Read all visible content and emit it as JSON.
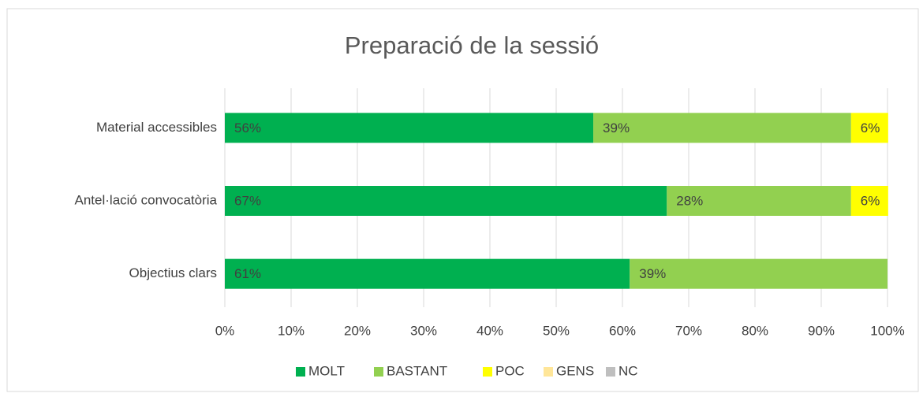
{
  "chart_data": {
    "type": "stacked_barh",
    "title": "Preparació de la sessió",
    "categories": [
      "Material accessibles",
      "Antel·lació convocatòria",
      "Objectius clars"
    ],
    "series": [
      {
        "name": "MOLT",
        "color": "#00b050",
        "values": [
          55.6,
          66.7,
          61.1
        ],
        "value_labels": [
          "56%",
          "67%",
          "61%"
        ]
      },
      {
        "name": "BASTANT",
        "color": "#92d050",
        "values": [
          38.9,
          27.8,
          38.9
        ],
        "value_labels": [
          "39%",
          "28%",
          "39%"
        ]
      },
      {
        "name": "POC",
        "color": "#ffff00",
        "values": [
          5.6,
          5.6,
          0
        ],
        "value_labels": [
          "6%",
          "6%",
          null
        ]
      },
      {
        "name": "GENS",
        "color": "#ffe699",
        "values": [
          0,
          0,
          0
        ]
      },
      {
        "name": "NC",
        "color": "#bfbfbf",
        "values": [
          0,
          0,
          0
        ]
      }
    ],
    "xlim": [
      0,
      100
    ],
    "xticks": [
      {
        "value": 0,
        "label": "0%"
      },
      {
        "value": 10,
        "label": "10%"
      },
      {
        "value": 20,
        "label": "20%"
      },
      {
        "value": 30,
        "label": "30%"
      },
      {
        "value": 40,
        "label": "40%"
      },
      {
        "value": 50,
        "label": "50%"
      },
      {
        "value": 60,
        "label": "60%"
      },
      {
        "value": 70,
        "label": "70%"
      },
      {
        "value": 80,
        "label": "80%"
      },
      {
        "value": 90,
        "label": "90%"
      },
      {
        "value": 100,
        "label": "100%"
      }
    ],
    "grid": true,
    "legend": "bottom"
  }
}
